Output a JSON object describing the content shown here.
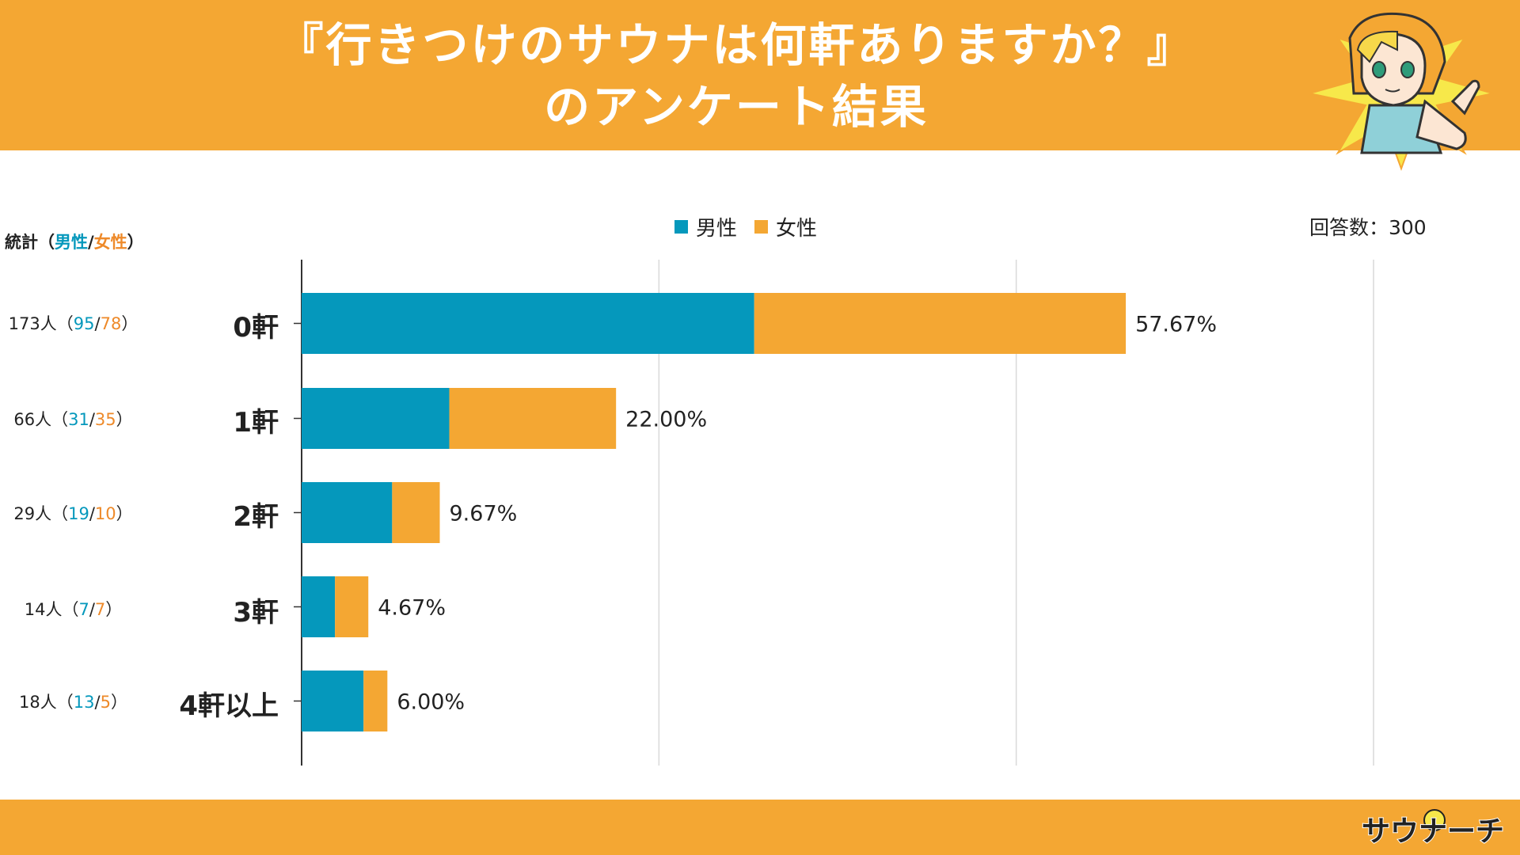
{
  "title": {
    "line1": "『行きつけのサウナは何軒ありますか？』",
    "line2": "のアンケート結果"
  },
  "total_label": "回答数：300",
  "stats_header": {
    "prefix": "統計（",
    "male": "男性",
    "sep": "/",
    "female": "女性",
    "suffix": "）"
  },
  "legend": {
    "male": "男性",
    "female": "女性"
  },
  "logo_text": "サウナーチ",
  "colors": {
    "header": "#F4A733",
    "male": "#0598BC",
    "female": "#F4A733",
    "male_text": "#0598BC",
    "female_text": "#EE8A2A"
  },
  "stats": [
    {
      "total": "173人",
      "male": "95",
      "female": "78"
    },
    {
      "total": "66人",
      "male": "31",
      "female": "35"
    },
    {
      "total": "29人",
      "male": "19",
      "female": "10"
    },
    {
      "total": "14人",
      "male": "7",
      "female": "7"
    },
    {
      "total": "18人",
      "male": "13",
      "female": "5"
    }
  ],
  "chart_data": {
    "type": "bar",
    "orientation": "horizontal",
    "stacked": true,
    "categories": [
      "0軒",
      "1軒",
      "2軒",
      "3軒",
      "4軒以上"
    ],
    "series": [
      {
        "name": "男性",
        "values": [
          95,
          31,
          19,
          7,
          13
        ]
      },
      {
        "name": "女性",
        "values": [
          78,
          35,
          10,
          7,
          5
        ]
      }
    ],
    "percent_labels": [
      "57.67%",
      "22.00%",
      "9.67%",
      "4.67%",
      "6.00%"
    ],
    "xlim": [
      0,
      225
    ],
    "gridlines": [
      75,
      150,
      225
    ],
    "legend_position": "top-center"
  }
}
